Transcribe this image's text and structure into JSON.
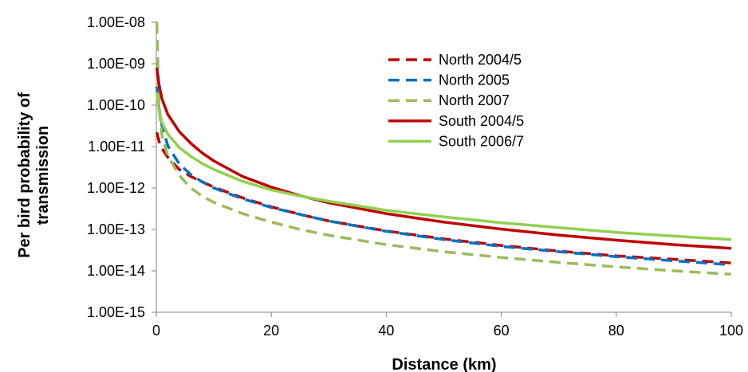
{
  "chart_data": {
    "type": "line",
    "title": "",
    "xlabel": "Distance (km)",
    "ylabel_lines": [
      "Per bird probability of",
      "transmission"
    ],
    "xlim": [
      0,
      100
    ],
    "ylim": [
      1e-15,
      1e-08
    ],
    "y_scale": "log",
    "x_ticks": [
      0,
      20,
      40,
      60,
      80,
      100
    ],
    "x_tick_labels": [
      "0",
      "20",
      "40",
      "60",
      "80",
      "100"
    ],
    "y_ticks": [
      1e-15,
      1e-14,
      1e-13,
      1e-12,
      1e-11,
      1e-10,
      1e-09,
      1e-08
    ],
    "y_tick_labels": [
      "1.00E-15",
      "1.00E-14",
      "1.00E-13",
      "1.00E-12",
      "1.00E-11",
      "1.00E-10",
      "1.00E-09",
      "1.00E-08"
    ],
    "grid": false,
    "legend_position": "top-right",
    "series": [
      {
        "name": "North 2004/5",
        "color": "#c00000",
        "style": "dashed",
        "x": [
          0.1,
          0.5,
          1,
          2,
          4,
          6,
          8,
          10,
          15,
          20,
          25,
          30,
          40,
          50,
          60,
          70,
          80,
          90,
          100
        ],
        "y": [
          2.2e-11,
          1.3e-11,
          9e-12,
          5.5e-12,
          2.8e-12,
          1.9e-12,
          1.4e-12,
          1.05e-12,
          5.8e-13,
          3.5e-13,
          2.3e-13,
          1.6e-13,
          9.2e-14,
          5.9e-14,
          4.1e-14,
          3e-14,
          2.3e-14,
          1.9e-14,
          1.55e-14
        ]
      },
      {
        "name": "North 2005",
        "color": "#0070c0",
        "style": "dashed",
        "x": [
          0.1,
          0.5,
          1,
          2,
          4,
          6,
          8,
          10,
          15,
          20,
          25,
          30,
          40,
          50,
          60,
          70,
          80,
          90,
          100
        ],
        "y": [
          2.8e-10,
          8e-11,
          3.2e-11,
          1.05e-11,
          3.8e-12,
          2.1e-12,
          1.4e-12,
          1e-12,
          5.5e-13,
          3.4e-13,
          2.3e-13,
          1.6e-13,
          9e-14,
          5.7e-14,
          3.9e-14,
          2.9e-14,
          2.2e-14,
          1.75e-14,
          1.4e-14
        ]
      },
      {
        "name": "North 2007",
        "color": "#9bbb59",
        "style": "dashed",
        "x": [
          0.1,
          0.5,
          1,
          2,
          4,
          6,
          8,
          10,
          15,
          20,
          25,
          30,
          40,
          50,
          60,
          70,
          80,
          90,
          100
        ],
        "y": [
          1e-08,
          8e-11,
          1.8e-11,
          6e-12,
          2e-12,
          1e-12,
          6.3e-13,
          4.5e-13,
          2.4e-13,
          1.5e-13,
          1e-13,
          7.2e-14,
          4.3e-14,
          2.9e-14,
          2.1e-14,
          1.6e-14,
          1.25e-14,
          1e-14,
          8.3e-15
        ]
      },
      {
        "name": "South 2004/5",
        "color": "#c00000",
        "style": "solid",
        "x": [
          0.1,
          0.5,
          1,
          2,
          4,
          6,
          8,
          10,
          15,
          20,
          25,
          30,
          40,
          50,
          60,
          70,
          80,
          90,
          100
        ],
        "y": [
          8e-10,
          3e-10,
          1.4e-10,
          6e-11,
          2.3e-11,
          1.2e-11,
          7e-12,
          4.5e-12,
          1.9e-12,
          1.05e-12,
          6.5e-13,
          4.4e-13,
          2.4e-13,
          1.5e-13,
          1.02e-13,
          7.3e-14,
          5.5e-14,
          4.3e-14,
          3.5e-14
        ]
      },
      {
        "name": "South 2006/7",
        "color": "#92d050",
        "style": "solid",
        "x": [
          0.1,
          0.5,
          1,
          2,
          4,
          6,
          8,
          10,
          15,
          20,
          25,
          30,
          40,
          50,
          60,
          70,
          80,
          90,
          100
        ],
        "y": [
          2e-10,
          7e-11,
          3.8e-11,
          2e-11,
          9.5e-12,
          5.8e-12,
          3.9e-12,
          2.8e-12,
          1.45e-12,
          9e-13,
          6.4e-13,
          4.8e-13,
          2.9e-13,
          2e-13,
          1.45e-13,
          1.1e-13,
          8.5e-14,
          6.9e-14,
          5.7e-14
        ]
      }
    ]
  }
}
